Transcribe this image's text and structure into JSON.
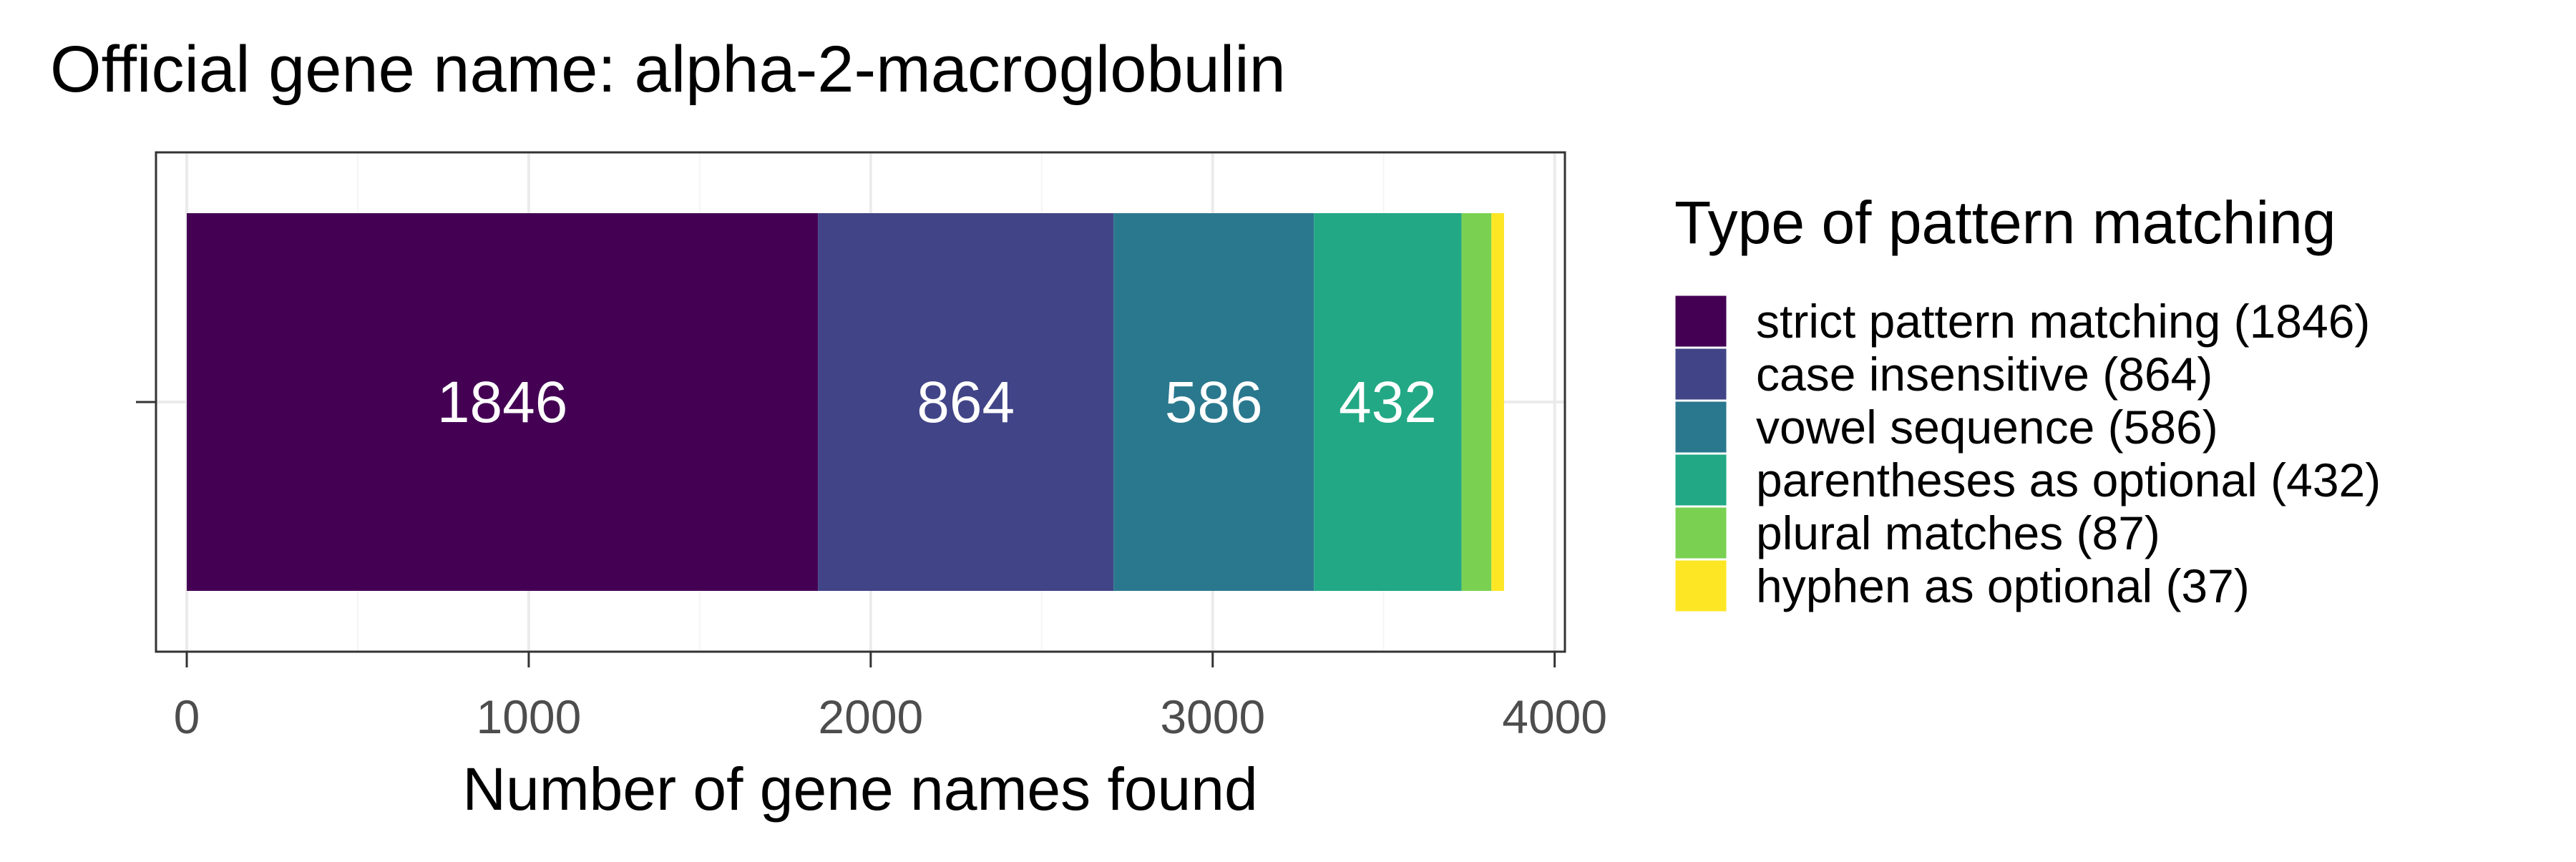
{
  "chart_data": {
    "type": "bar",
    "orientation": "horizontal",
    "stacked": true,
    "title": "Official gene name: alpha-2-macroglobulin",
    "xlabel": "Number of gene names found",
    "ylabel": "",
    "xlim": [
      -90,
      4030
    ],
    "x_ticks": [
      "0",
      "1000",
      "2000",
      "3000",
      "4000"
    ],
    "x_tick_values": [
      0,
      1000,
      2000,
      3000,
      4000
    ],
    "grid": true,
    "legend_title": "Type of pattern matching",
    "legend_position": "right",
    "series": [
      {
        "name": "strict pattern matching (1846)",
        "value": 1846,
        "data_label": "1846",
        "color": "#440154"
      },
      {
        "name": "case insensitive (864)",
        "value": 864,
        "data_label": "864",
        "color": "#414487"
      },
      {
        "name": "vowel sequence (586)",
        "value": 586,
        "data_label": "586",
        "color": "#2A788E"
      },
      {
        "name": "parentheses as optional (432)",
        "value": 432,
        "data_label": "432",
        "color": "#22A884"
      },
      {
        "name": "plural matches (87)",
        "value": 87,
        "data_label": "",
        "color": "#7AD151"
      },
      {
        "name": "hyphen as optional (37)",
        "value": 37,
        "data_label": "",
        "color": "#FDE725"
      }
    ]
  }
}
